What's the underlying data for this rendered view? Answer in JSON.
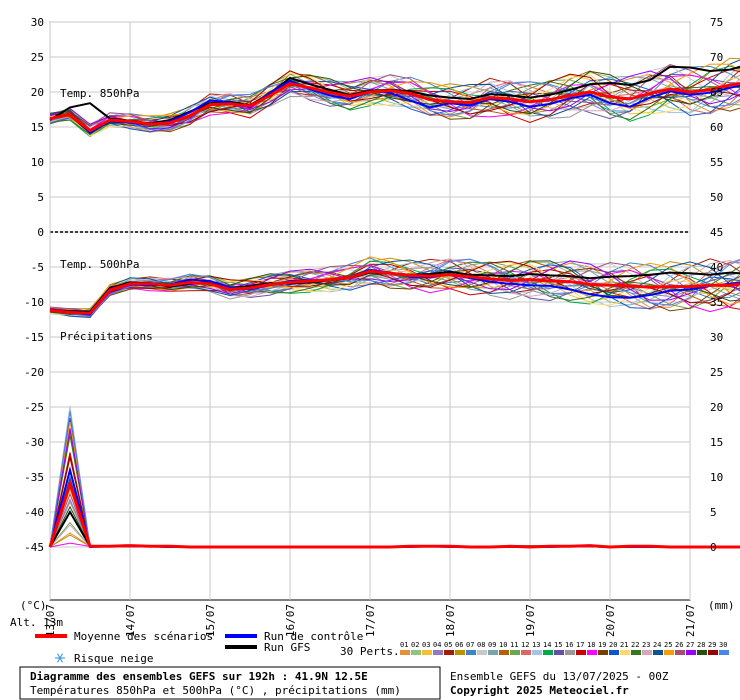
{
  "chart_data": {
    "type": "line",
    "dates": [
      "13/07",
      "14/07",
      "15/07",
      "16/07",
      "17/07",
      "18/07",
      "19/07",
      "20/07",
      "21/07"
    ],
    "step_hours": 6,
    "left_axis": {
      "unit_label": "(°C)",
      "ticks": [
        30,
        25,
        20,
        15,
        10,
        5,
        0,
        -5,
        -10,
        -15,
        -20,
        -25,
        -30,
        -35,
        -40,
        -45
      ]
    },
    "right_axis": {
      "unit_label": "(mm)",
      "upper_ticks": [
        75,
        70,
        65,
        60,
        55,
        50,
        45
      ],
      "lower_ticks": [
        40,
        35,
        30,
        25,
        20,
        15,
        10,
        5,
        0
      ]
    },
    "grid": true,
    "panels": [
      {
        "label": "Temp. 850hPa",
        "unit": "°C",
        "ylim": [
          0,
          30
        ]
      },
      {
        "label": "Temp. 500hPa",
        "unit": "°C",
        "ylim": [
          -15,
          0
        ]
      },
      {
        "label": "Précipitations",
        "unit": "mm",
        "ylim": [
          0,
          30
        ]
      }
    ],
    "series": [
      {
        "name": "Moyenne des scénarios",
        "color": "#ff0000",
        "t850": [
          16.2,
          16.8,
          14.5,
          16.0,
          15.8,
          15.4,
          15.6,
          16.6,
          18.2,
          18.3,
          18.0,
          19.5,
          21.2,
          20.6,
          19.9,
          19.4,
          20.0,
          20.2,
          19.8,
          18.9,
          18.6,
          18.5,
          19.2,
          19.0,
          18.6,
          18.9,
          19.5,
          20.0,
          19.3,
          19.0,
          19.8,
          20.4,
          20.0,
          20.3,
          21.0,
          21.4,
          22.0
        ],
        "t500": [
          -11.2,
          -11.5,
          -11.6,
          -8.3,
          -7.4,
          -7.4,
          -7.6,
          -7.2,
          -7.4,
          -8.2,
          -8.0,
          -7.5,
          -7.2,
          -7.0,
          -6.8,
          -6.5,
          -5.6,
          -5.9,
          -6.2,
          -6.3,
          -6.1,
          -6.4,
          -6.7,
          -6.9,
          -6.8,
          -7.0,
          -7.1,
          -7.5,
          -7.6,
          -7.7,
          -7.9,
          -7.8,
          -7.8,
          -7.6,
          -7.6,
          -7.3,
          -7.2
        ],
        "precip": [
          0,
          9,
          0.1,
          0.1,
          0.2,
          0.1,
          0.1,
          0,
          0,
          0,
          0,
          0,
          0,
          0,
          0,
          0,
          0,
          0,
          0.1,
          0.1,
          0.1,
          0,
          0,
          0.1,
          0,
          0.1,
          0.1,
          0.2,
          0,
          0.1,
          0.1,
          0,
          0,
          0,
          0,
          0,
          0
        ]
      },
      {
        "name": "Run de contrôle",
        "color": "#0000ff",
        "t850": [
          16.2,
          16.9,
          14.2,
          15.8,
          15.6,
          15.3,
          15.8,
          17.1,
          18.8,
          18.5,
          17.8,
          19.9,
          21.6,
          20.4,
          19.5,
          19.0,
          20.1,
          19.9,
          18.8,
          17.8,
          18.4,
          18.1,
          19.0,
          18.6,
          17.9,
          18.3,
          19.1,
          19.6,
          18.4,
          17.9,
          19.2,
          20.1,
          19.6,
          19.9,
          20.6,
          21.2,
          21.5
        ],
        "t500": [
          -11.2,
          -11.5,
          -11.8,
          -8.1,
          -7.5,
          -7.6,
          -7.5,
          -6.8,
          -7.0,
          -7.9,
          -8.2,
          -7.6,
          -7.0,
          -6.9,
          -6.9,
          -6.4,
          -5.4,
          -5.8,
          -6.4,
          -6.5,
          -6.0,
          -6.6,
          -7.1,
          -7.4,
          -7.6,
          -7.7,
          -8.2,
          -8.9,
          -9.3,
          -9.4,
          -9.0,
          -8.4,
          -8.2,
          -7.7,
          -7.4,
          -7.0,
          -6.9
        ],
        "precip": [
          0,
          11,
          0,
          0.1,
          0.1,
          0.1,
          0,
          0,
          0,
          0,
          0,
          0,
          0,
          0,
          0,
          0,
          0,
          0,
          0,
          0.1,
          0,
          0,
          0,
          0,
          0,
          0,
          0.1,
          0.1,
          0,
          0,
          0,
          0,
          0,
          0,
          0,
          0,
          0
        ]
      },
      {
        "name": "Run GFS",
        "color": "#000000",
        "t850": [
          16.0,
          17.8,
          18.4,
          16.2,
          15.9,
          15.5,
          16.0,
          17.2,
          18.4,
          18.6,
          18.1,
          19.8,
          22.0,
          21.1,
          20.3,
          19.6,
          20.2,
          20.3,
          20.1,
          19.5,
          19.2,
          19.0,
          19.7,
          19.5,
          19.2,
          19.6,
          20.3,
          21.1,
          21.3,
          21.0,
          21.7,
          23.6,
          23.5,
          23.0,
          23.2,
          24.0,
          25.3
        ],
        "t500": [
          -11.1,
          -11.3,
          -11.4,
          -8.0,
          -7.2,
          -7.3,
          -7.8,
          -7.4,
          -7.1,
          -8.0,
          -7.7,
          -7.3,
          -7.4,
          -7.2,
          -6.9,
          -6.6,
          -5.8,
          -5.9,
          -6.1,
          -6.0,
          -5.7,
          -6.1,
          -6.2,
          -6.3,
          -6.0,
          -6.2,
          -6.3,
          -6.6,
          -6.4,
          -6.3,
          -6.1,
          -5.8,
          -5.9,
          -6.1,
          -5.8,
          -6.0,
          -5.9
        ],
        "precip": [
          0,
          5,
          0.1,
          0.1,
          0.1,
          0.1,
          0,
          0,
          0,
          0,
          0,
          0,
          0,
          0,
          0,
          0,
          0,
          0,
          0.1,
          0.1,
          0.1,
          0,
          0,
          0.1,
          0.1,
          0.1,
          0.1,
          0.1,
          0,
          0,
          0.1,
          0,
          0,
          0,
          0,
          0,
          0
        ]
      }
    ],
    "perturbations": {
      "count": 30,
      "labels": [
        "01",
        "02",
        "03",
        "04",
        "05",
        "06",
        "07",
        "08",
        "09",
        "10",
        "11",
        "12",
        "13",
        "14",
        "15",
        "16",
        "17",
        "18",
        "19",
        "20",
        "21",
        "22",
        "23",
        "24",
        "25",
        "26",
        "27",
        "28",
        "29",
        "30"
      ],
      "colors": [
        "#e69138",
        "#93c47d",
        "#f1c232",
        "#8e7cc3",
        "#a61c00",
        "#bf9000",
        "#3d85c6",
        "#c9c9c9",
        "#76a5af",
        "#b45f06",
        "#6aa84f",
        "#e06666",
        "#9fc5e8",
        "#00aa44",
        "#674ea7",
        "#999999",
        "#cc0000",
        "#ff00ff",
        "#783f04",
        "#1155cc",
        "#ffd966",
        "#38761d",
        "#d5a6bd",
        "#0b5394",
        "#ff9900",
        "#a64d79",
        "#9900ff",
        "#274e13",
        "#990000",
        "#4a86e8"
      ]
    }
  },
  "header": {
    "alt_label": "Alt. 13m"
  },
  "legend": {
    "mean_label": "Moyenne des scénarios",
    "control_label": "Run de contrôle",
    "gfs_label": "Run GFS",
    "snow_label": "Risque neige",
    "perts_label": "30 Perts.",
    "mean_color": "#ff0000",
    "control_color": "#0000ff",
    "gfs_color": "#000000",
    "snow_icon": "snowflake-icon"
  },
  "footer": {
    "title": "Diagramme des ensembles GEFS sur 192h : 41.9N 12.5E",
    "subtitle": "Températures 850hPa et 500hPa (°C) , précipitations (mm)",
    "run_info": "Ensemble GEFS du 13/07/2025 - 00Z",
    "copyright": "Copyright 2025 Meteociel.fr"
  }
}
